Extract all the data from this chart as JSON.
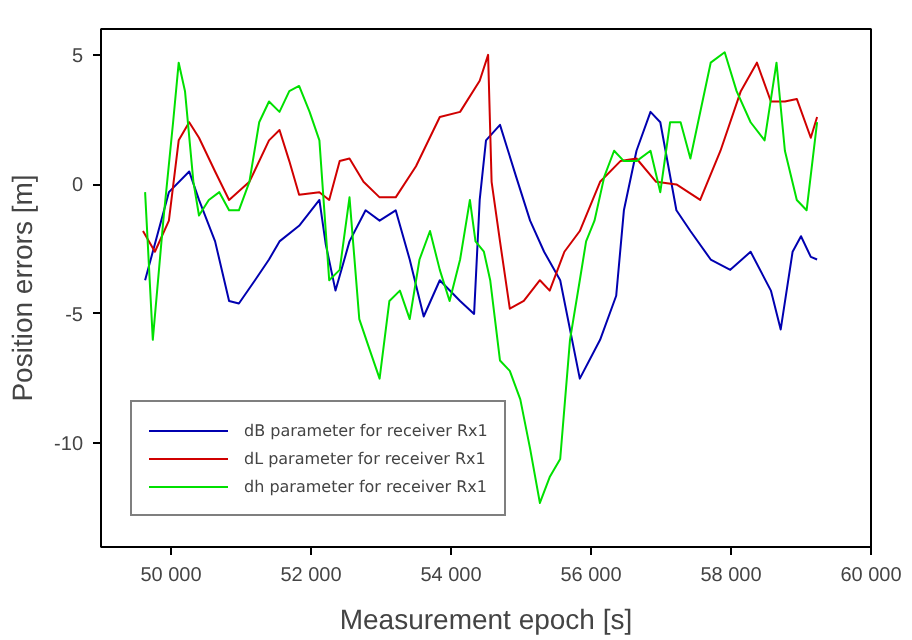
{
  "chart_data": {
    "type": "line",
    "xlabel": "Measurement epoch [s]",
    "ylabel": "Position errors [m]",
    "xlim": [
      49000,
      60000
    ],
    "ylim": [
      -14,
      6
    ],
    "xticks": [
      {
        "value": 50000,
        "label": "50 000"
      },
      {
        "value": 52000,
        "label": "52 000"
      },
      {
        "value": 54000,
        "label": "54 000"
      },
      {
        "value": 56000,
        "label": "56 000"
      },
      {
        "value": 58000,
        "label": "58 000"
      },
      {
        "value": 60000,
        "label": "60 000"
      }
    ],
    "yticks": [
      -10,
      -5,
      0,
      5
    ],
    "grid": false,
    "legend": "bottom left",
    "marker": "none",
    "line_style": "solid",
    "series": [
      {
        "name": "dB parameter for receiver Rx1",
        "color": "#0000b0",
        "x": [
          49630,
          49970,
          50260,
          50400,
          50630,
          50830,
          50970,
          51200,
          51400,
          51550,
          51830,
          52120,
          52210,
          52350,
          52550,
          52780,
          52980,
          53210,
          53410,
          53610,
          53840,
          54130,
          54330,
          54410,
          54500,
          54700,
          54930,
          55130,
          55330,
          55560,
          55840,
          56130,
          56360,
          56470,
          56650,
          56850,
          56990,
          57220,
          57420,
          57710,
          57990,
          58280,
          58570,
          58710,
          58880,
          59000,
          59140,
          59230
        ],
        "values": [
          -3.7,
          -0.3,
          0.5,
          -0.6,
          -2.2,
          -4.5,
          -4.6,
          -3.7,
          -2.9,
          -2.2,
          -1.6,
          -0.6,
          -2.3,
          -4.1,
          -2.2,
          -1.0,
          -1.4,
          -1.0,
          -2.9,
          -5.1,
          -3.7,
          -4.5,
          -5.0,
          -0.6,
          1.7,
          2.3,
          0.3,
          -1.4,
          -2.6,
          -3.7,
          -7.5,
          -6.0,
          -4.3,
          -1.0,
          1.3,
          2.8,
          2.4,
          -1.0,
          -1.8,
          -2.9,
          -3.3,
          -2.6,
          -4.1,
          -5.6,
          -2.6,
          -2.0,
          -2.8,
          -2.9
        ]
      },
      {
        "name": "dL parameter for receiver Rx1",
        "color": "#d00000",
        "x": [
          49600,
          49770,
          49970,
          50110,
          50260,
          50400,
          50630,
          50830,
          51120,
          51400,
          51550,
          51690,
          51830,
          52120,
          52260,
          52410,
          52550,
          52750,
          52980,
          53210,
          53500,
          53840,
          54130,
          54410,
          54530,
          54580,
          54700,
          54840,
          55040,
          55270,
          55410,
          55620,
          55840,
          56130,
          56420,
          56650,
          56930,
          57220,
          57560,
          57850,
          58140,
          58370,
          58570,
          58770,
          58940,
          59140,
          59230
        ],
        "values": [
          -1.8,
          -2.6,
          -1.4,
          1.7,
          2.4,
          1.8,
          0.5,
          -0.6,
          0.1,
          1.7,
          2.1,
          0.9,
          -0.4,
          -0.3,
          -0.6,
          0.9,
          1.0,
          0.1,
          -0.5,
          -0.5,
          0.7,
          2.6,
          2.8,
          4.0,
          5.0,
          0.1,
          -2.2,
          -4.8,
          -4.5,
          -3.7,
          -4.1,
          -2.6,
          -1.8,
          0.1,
          0.9,
          1.0,
          0.1,
          0.0,
          -0.6,
          1.3,
          3.6,
          4.7,
          3.2,
          3.2,
          3.3,
          1.8,
          2.6
        ]
      },
      {
        "name": "dh parameter for receiver Rx1",
        "color": "#00e000",
        "x": [
          49630,
          49740,
          49890,
          50030,
          50110,
          50200,
          50320,
          50400,
          50540,
          50690,
          50830,
          50970,
          51120,
          51260,
          51400,
          51550,
          51690,
          51830,
          51980,
          52120,
          52260,
          52410,
          52550,
          52690,
          52840,
          52980,
          53120,
          53270,
          53410,
          53550,
          53700,
          53840,
          53980,
          54130,
          54270,
          54350,
          54470,
          54560,
          54700,
          54840,
          54990,
          55130,
          55270,
          55410,
          55560,
          55700,
          55840,
          55930,
          56050,
          56190,
          56330,
          56470,
          56650,
          56850,
          56990,
          57130,
          57280,
          57420,
          57710,
          57910,
          58080,
          58280,
          58480,
          58650,
          58770,
          58940,
          59080,
          59230
        ],
        "values": [
          -0.3,
          -6.0,
          -1.4,
          2.4,
          4.7,
          3.6,
          0.1,
          -1.2,
          -0.6,
          -0.3,
          -1.0,
          -1.0,
          0.1,
          2.4,
          3.2,
          2.8,
          3.6,
          3.8,
          2.8,
          1.7,
          -3.7,
          -3.3,
          -0.5,
          -5.2,
          -6.4,
          -7.5,
          -4.5,
          -4.1,
          -5.2,
          -2.9,
          -1.8,
          -3.3,
          -4.5,
          -2.9,
          -0.6,
          -2.2,
          -2.6,
          -3.7,
          -6.8,
          -7.2,
          -8.3,
          -10.2,
          -12.3,
          -11.3,
          -10.6,
          -6.0,
          -3.7,
          -2.2,
          -1.4,
          0.3,
          1.3,
          0.9,
          0.9,
          1.3,
          -0.3,
          2.4,
          2.4,
          1.0,
          4.7,
          5.1,
          3.6,
          2.4,
          1.7,
          4.7,
          1.3,
          -0.6,
          -1.0,
          2.4
        ]
      }
    ]
  }
}
